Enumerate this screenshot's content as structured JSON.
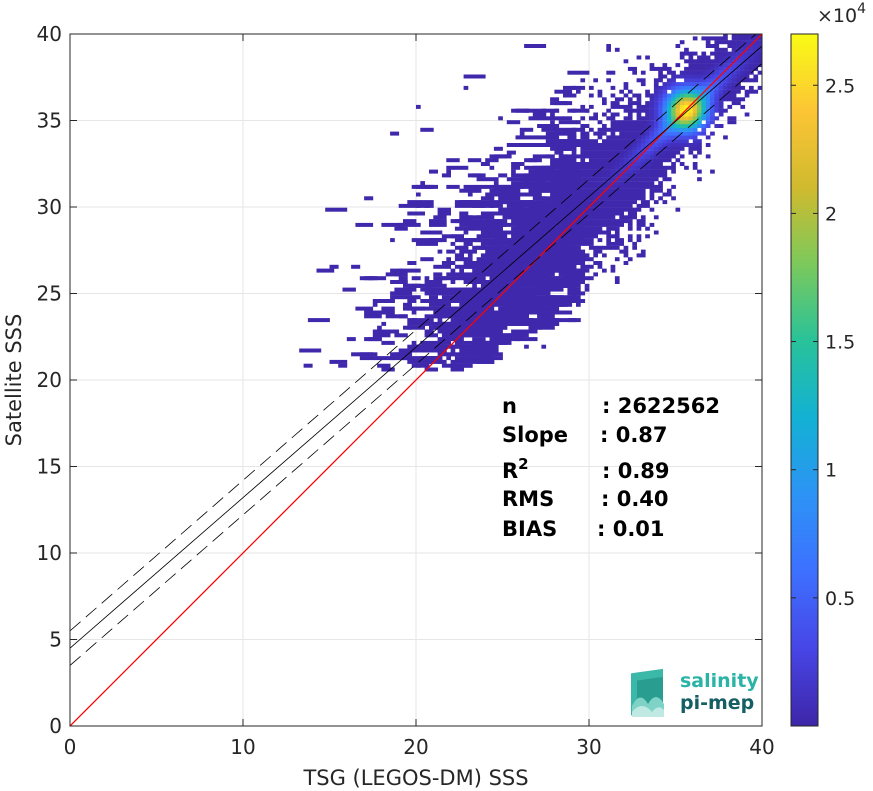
{
  "chart_data": {
    "type": "heatmap",
    "xlabel": "TSG (LEGOS-DM) SSS",
    "ylabel": "Satellite SSS",
    "xlim": [
      0,
      40
    ],
    "ylim": [
      0,
      40
    ],
    "xticks": [
      "0",
      "10",
      "20",
      "30",
      "40"
    ],
    "yticks": [
      "0",
      "5",
      "10",
      "15",
      "20",
      "25",
      "30",
      "35",
      "40"
    ],
    "grid": true,
    "colorbar": {
      "multiplier_base": "×10",
      "multiplier_exp": "4",
      "range": [
        0,
        2.7
      ],
      "ticks": [
        "0.5",
        "1",
        "1.5",
        "2",
        "2.5"
      ],
      "colormap": [
        "#3e26a8",
        "#4745e6",
        "#3d70ff",
        "#2d93f5",
        "#13b1d4",
        "#28c29a",
        "#7bc95c",
        "#d0ba2e",
        "#fcc535",
        "#f9fb15"
      ]
    },
    "reference_line": {
      "slope": 1,
      "intercept": 0,
      "color": "#ff0000"
    },
    "fit_line": {
      "slope": 0.87,
      "intercept": 4.5,
      "band": 1.0,
      "color": "#000000"
    },
    "density": {
      "peak": [
        35.5,
        35.5
      ],
      "peak_value": 2.7,
      "main_ridge": [
        [
          29,
          30.5
        ],
        [
          32,
          32.8
        ],
        [
          34,
          34.4
        ],
        [
          35.5,
          35.6
        ],
        [
          37.5,
          37.2
        ],
        [
          40,
          39.5
        ]
      ],
      "cloud_x_range": [
        13,
        40
      ],
      "cloud_y_range": [
        20.5,
        40
      ]
    },
    "stats": [
      {
        "label": "n",
        "value": ": 2622562"
      },
      {
        "label": "Slope",
        "value": ": 0.87"
      },
      {
        "label": "R",
        "sup": "2",
        "value": ": 0.89"
      },
      {
        "label": "RMS",
        "value": ": 0.40"
      },
      {
        "label": "BIAS",
        "value": ": 0.01"
      }
    ]
  },
  "logo": {
    "line1": "salinity",
    "line2": "pi-mep",
    "color1": "#2ab3a6",
    "color2": "#155e63"
  }
}
